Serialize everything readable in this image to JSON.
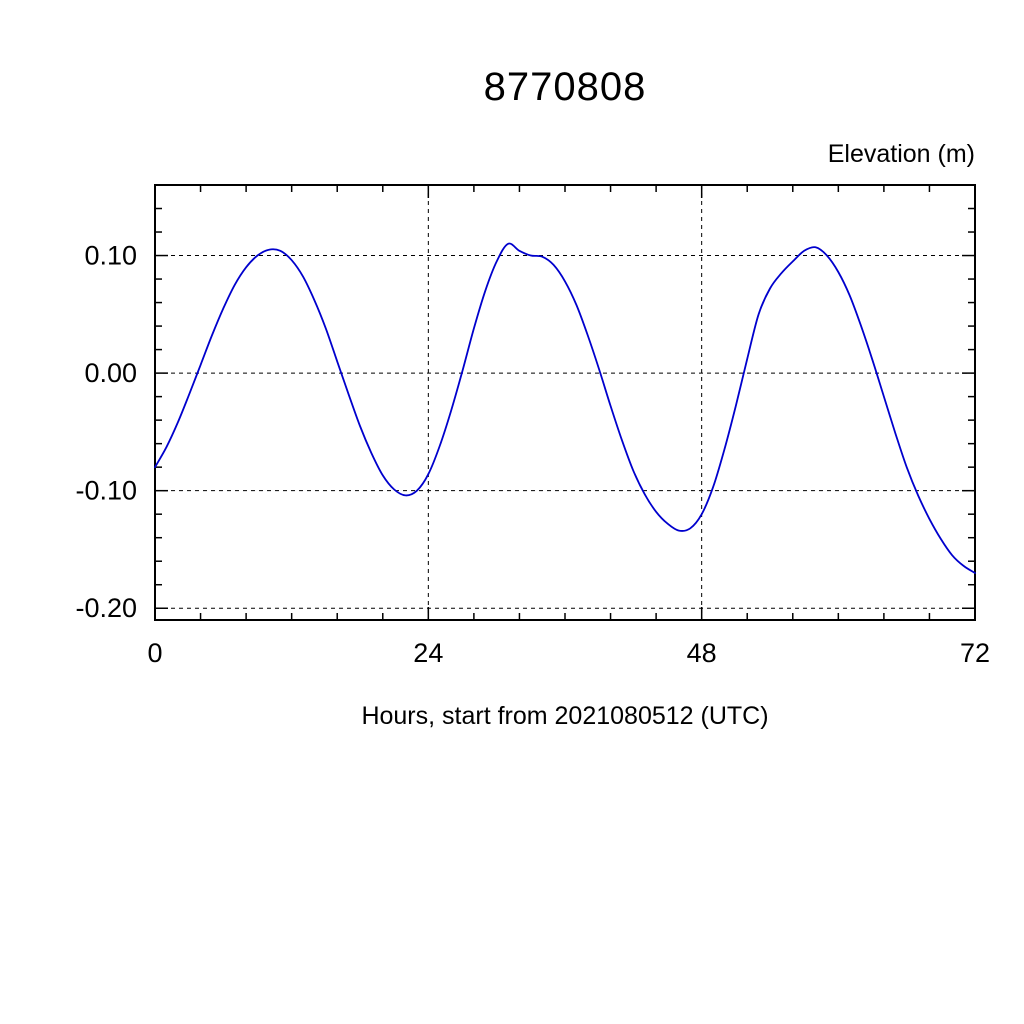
{
  "chart_data": {
    "type": "line",
    "title": "8770808",
    "ylabel": "Elevation (m)",
    "xlabel": "Hours, start from 2021080512 (UTC)",
    "xlim": [
      0,
      72
    ],
    "ylim": [
      -0.21,
      0.16
    ],
    "xticks": [
      0,
      24,
      48,
      72
    ],
    "xtick_labels": [
      "0",
      "24",
      "48",
      "72"
    ],
    "x_minor_step": 4,
    "yticks": [
      -0.2,
      -0.1,
      0.0,
      0.1
    ],
    "ytick_labels": [
      "-0.20",
      "-0.10",
      "0.00",
      "0.10"
    ],
    "y_minor_step": 0.02,
    "grid_x": [
      24,
      48
    ],
    "grid_y": [
      -0.2,
      -0.1,
      0.0,
      0.1
    ],
    "grid_style": "dashed",
    "legend": "none",
    "line_color": "#0000cd",
    "axis_color": "#000000",
    "x": [
      0,
      1,
      2,
      3,
      4,
      5,
      6,
      7,
      8,
      9,
      10,
      11,
      12,
      13,
      14,
      15,
      16,
      17,
      18,
      19,
      20,
      21,
      22,
      23,
      24,
      25,
      26,
      27,
      28,
      29,
      30,
      31,
      32,
      33,
      34,
      35,
      36,
      37,
      38,
      39,
      40,
      41,
      42,
      43,
      44,
      45,
      46,
      47,
      48,
      49,
      50,
      51,
      52,
      53,
      54,
      55,
      56,
      57,
      58,
      59,
      60,
      61,
      62,
      63,
      64,
      65,
      66,
      67,
      68,
      69,
      70,
      71,
      72
    ],
    "values": [
      -0.08,
      -0.063,
      -0.042,
      -0.018,
      0.007,
      0.032,
      0.055,
      0.075,
      0.09,
      0.1,
      0.105,
      0.104,
      0.096,
      0.082,
      0.062,
      0.038,
      0.01,
      -0.018,
      -0.045,
      -0.068,
      -0.087,
      -0.099,
      -0.104,
      -0.1,
      -0.086,
      -0.062,
      -0.032,
      0.002,
      0.038,
      0.07,
      0.095,
      0.11,
      0.104,
      0.1,
      0.099,
      0.092,
      0.078,
      0.058,
      0.032,
      0.003,
      -0.028,
      -0.057,
      -0.083,
      -0.103,
      -0.118,
      -0.128,
      -0.134,
      -0.132,
      -0.12,
      -0.097,
      -0.065,
      -0.028,
      0.012,
      0.05,
      0.072,
      0.085,
      0.095,
      0.104,
      0.107,
      0.1,
      0.086,
      0.066,
      0.04,
      0.011,
      -0.02,
      -0.051,
      -0.08,
      -0.104,
      -0.124,
      -0.141,
      -0.155,
      -0.164,
      -0.17
    ]
  }
}
